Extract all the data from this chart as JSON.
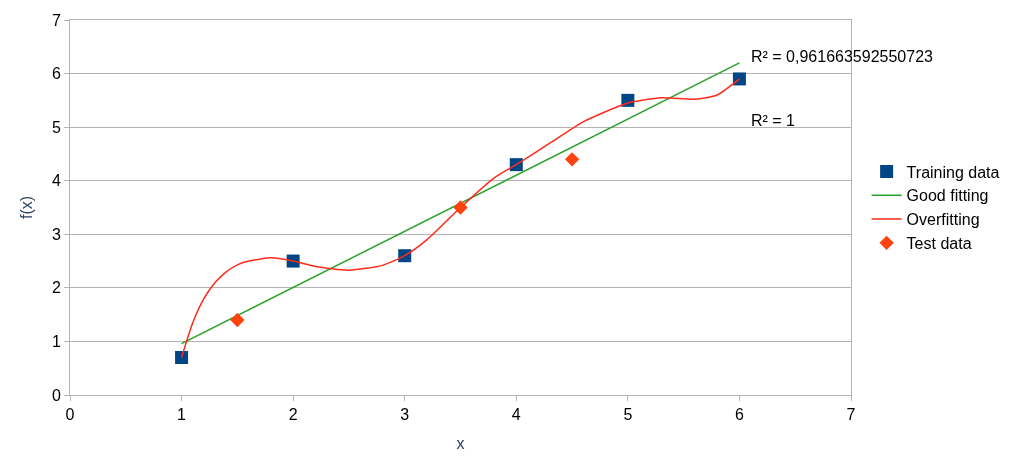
{
  "chart_data": {
    "type": "scatter",
    "xlabel": "x",
    "ylabel": "f(x)",
    "xlim": [
      0,
      7
    ],
    "xticks": [
      0,
      1,
      2,
      3,
      4,
      5,
      6,
      7
    ],
    "ylim": [
      0,
      7
    ],
    "yticks": [
      0,
      1,
      2,
      3,
      4,
      5,
      6,
      7
    ],
    "grid": "y",
    "legend": "right",
    "series": [
      {
        "name": "Training data",
        "marker": "square",
        "color": "#004586",
        "x": [
          1,
          2,
          3,
          4,
          5,
          6
        ],
        "values": [
          0.7,
          2.5,
          2.6,
          4.3,
          5.5,
          5.9
        ]
      },
      {
        "name": "Good fitting",
        "type": "line",
        "marker": "none",
        "color": "#2ca02c",
        "x": [
          1,
          6
        ],
        "values": [
          0.96,
          6.2
        ]
      },
      {
        "name": "Overfitting",
        "type": "line",
        "marker": "none",
        "color": "#ff2a1a",
        "x": [
          1,
          1.1,
          1.2,
          1.3,
          1.4,
          1.5,
          1.6,
          1.8,
          2.0,
          2.2,
          2.5,
          2.8,
          3.0,
          3.2,
          3.5,
          3.8,
          4.0,
          4.3,
          4.6,
          5.0,
          5.3,
          5.6,
          5.8,
          6.0
        ],
        "values": [
          0.7,
          1.35,
          1.8,
          2.1,
          2.3,
          2.43,
          2.5,
          2.56,
          2.5,
          2.4,
          2.33,
          2.42,
          2.6,
          2.9,
          3.5,
          4.05,
          4.3,
          4.7,
          5.1,
          5.45,
          5.55,
          5.52,
          5.6,
          5.9
        ]
      },
      {
        "name": "Test data",
        "marker": "diamond",
        "color": "#ff420e",
        "x": [
          1.5,
          3.5,
          4.5
        ],
        "values": [
          1.4,
          3.5,
          4.4
        ]
      }
    ],
    "annotations": [
      "R² = 0,961663592550723",
      "R² = 1"
    ]
  }
}
